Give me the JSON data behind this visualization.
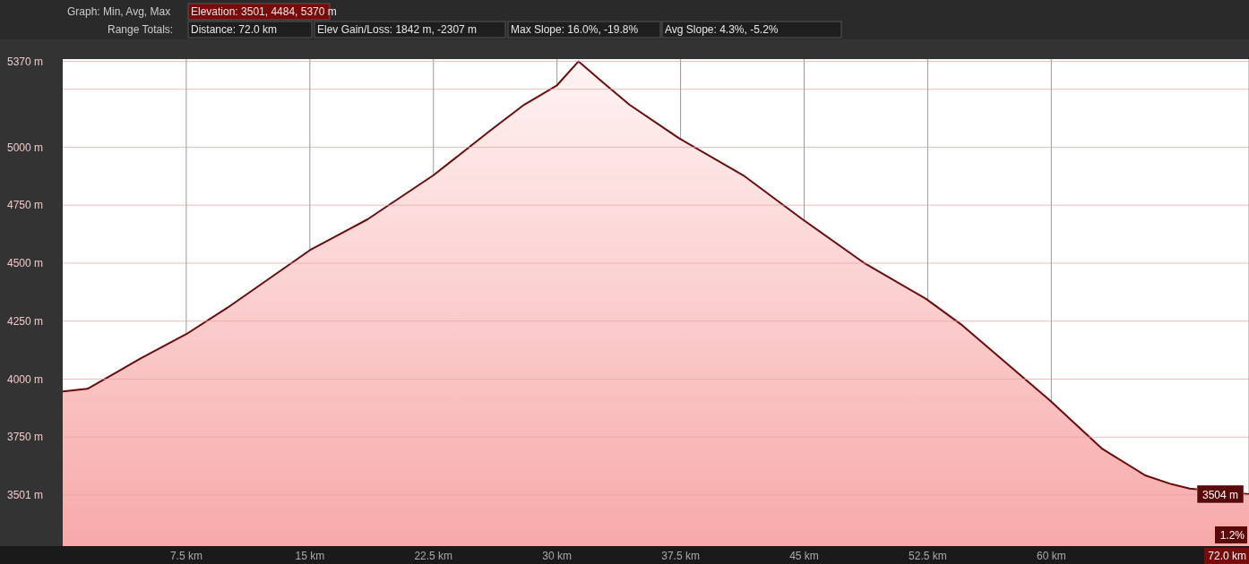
{
  "chart_data": {
    "type": "area",
    "x": [
      0,
      1.5,
      3.1,
      4.7,
      7.5,
      10,
      15,
      18.5,
      22.5,
      25.9,
      28,
      30,
      31.3,
      32.8,
      34.4,
      37.4,
      41.3,
      44.9,
      48.7,
      52.4,
      54.6,
      59.9,
      63.1,
      65.7,
      67.3,
      68.4,
      72
    ],
    "series": [
      {
        "color": "#6b0a0a",
        "values": [
          3947,
          3958,
          4023,
          4088,
          4194,
          4308,
          4556,
          4689,
          4879,
          5069,
          5183,
          5267,
          5370,
          5279,
          5183,
          5039,
          4879,
          4689,
          4498,
          4346,
          4232,
          3909,
          3699,
          3585,
          3547,
          3528,
          3504
        ]
      }
    ],
    "xlim": [
      0,
      72
    ],
    "ylim": [
      3280,
      5380
    ],
    "xticks": [
      {
        "value": 7.5,
        "label": "7.5 km"
      },
      {
        "value": 15,
        "label": "15 km"
      },
      {
        "value": 22.5,
        "label": "22.5 km"
      },
      {
        "value": 30,
        "label": "30 km"
      },
      {
        "value": 37.5,
        "label": "37.5 km"
      },
      {
        "value": 45,
        "label": "45 km"
      },
      {
        "value": 52.5,
        "label": "52.5 km"
      },
      {
        "value": 60,
        "label": "60 km"
      },
      {
        "value": 72,
        "label": "72.0 km"
      }
    ],
    "yticks": [
      {
        "value": 3501,
        "label": "3501 m"
      },
      {
        "value": 3750,
        "label": "3750 m"
      },
      {
        "value": 4000,
        "label": "4000 m"
      },
      {
        "value": 4250,
        "label": "4250 m"
      },
      {
        "value": 4500,
        "label": "4500 m"
      },
      {
        "value": 4750,
        "label": "4750 m"
      },
      {
        "value": 5000,
        "label": "5000 m"
      },
      {
        "value": 5250,
        "label": null
      },
      {
        "value": 5370,
        "label": "5370 m"
      }
    ],
    "grid": true,
    "annotations": [
      "Graph: Min, Avg, Max",
      "Elevation: 3501, 4484, 5370 m",
      "Range Totals:",
      "Distance: 72.0 km",
      "Elev Gain/Loss: 1842 m, -2307 m",
      "Max Slope: 16.0%, -19.8%",
      "Avg Slope: 4.3%, -5.2%",
      {
        "text": "3504 m",
        "x": 72,
        "y": 3504
      },
      "1.2%"
    ]
  }
}
